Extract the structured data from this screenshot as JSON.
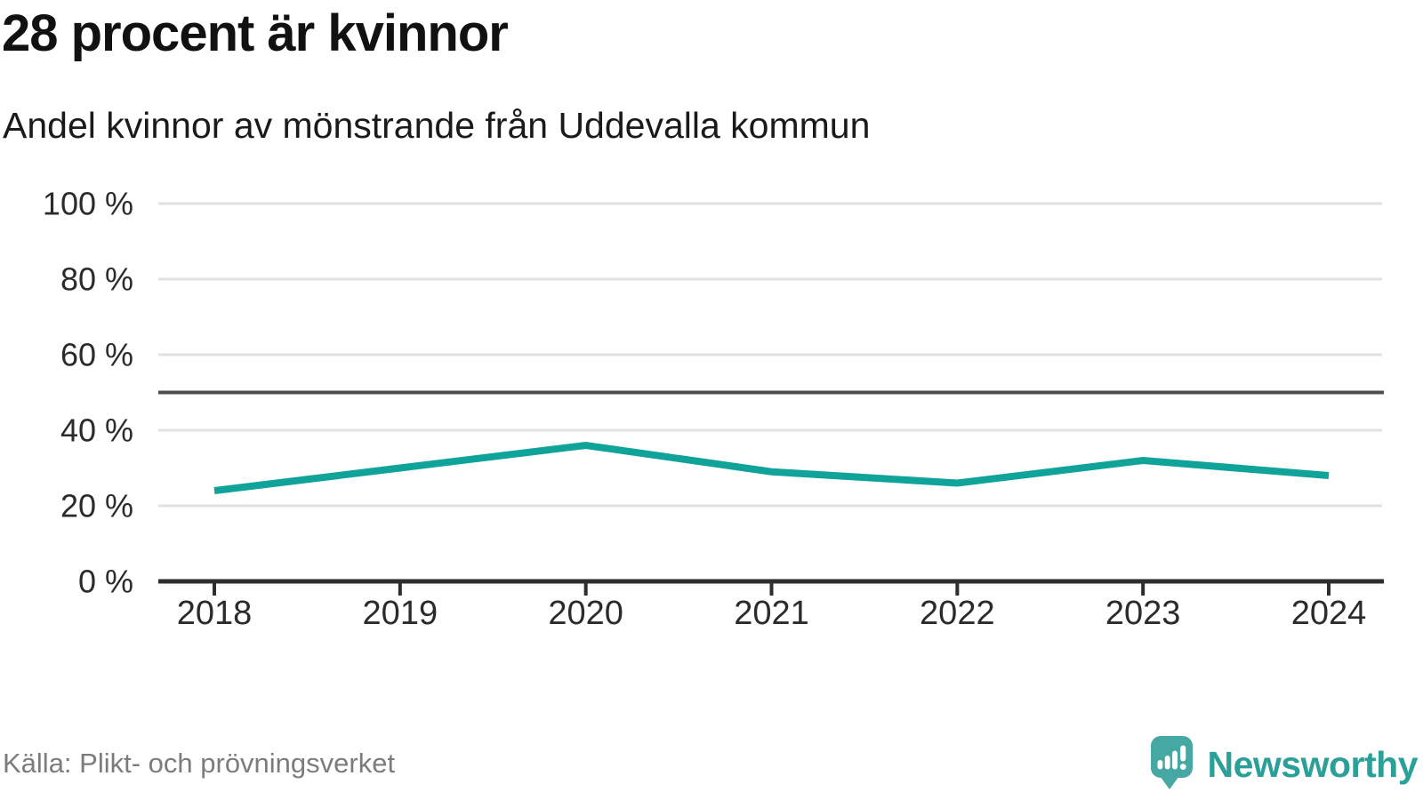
{
  "header": {
    "title": "28 procent är kvinnor",
    "subtitle": "Andel kvinnor av mönstrande från Uddevalla kommun"
  },
  "footer": {
    "source": "Källa: Plikt- och prövningsverket",
    "brand": "Newsworthy"
  },
  "icons": {
    "logo": "newsworthy-speech-bubble-chart-icon"
  },
  "colors": {
    "line": "#10a39a",
    "grid": "#e1e1e1",
    "reference_line": "#4d4d4d",
    "axis": "#2e2e2e",
    "logo_bubble": "#46a8a2",
    "logo_text": "#2aa098",
    "source_text": "#7c7c7c"
  },
  "chart_data": {
    "type": "line",
    "title": "28 procent är kvinnor",
    "subtitle": "Andel kvinnor av mönstrande från Uddevalla kommun",
    "categories": [
      "2018",
      "2019",
      "2020",
      "2021",
      "2022",
      "2023",
      "2024"
    ],
    "series": [
      {
        "name": "Andel kvinnor av mönstrande",
        "values": [
          24,
          30,
          36,
          29,
          26,
          32,
          28
        ]
      }
    ],
    "unit": "%",
    "xlabel": "",
    "ylabel": "",
    "ylim": [
      0,
      100
    ],
    "y_ticks": [
      0,
      20,
      40,
      60,
      80,
      100
    ],
    "y_tick_labels": [
      "0 %",
      "20 %",
      "40 %",
      "60 %",
      "80 %",
      "100 %"
    ],
    "reference_line": 50,
    "grid": true,
    "legend": "none"
  }
}
